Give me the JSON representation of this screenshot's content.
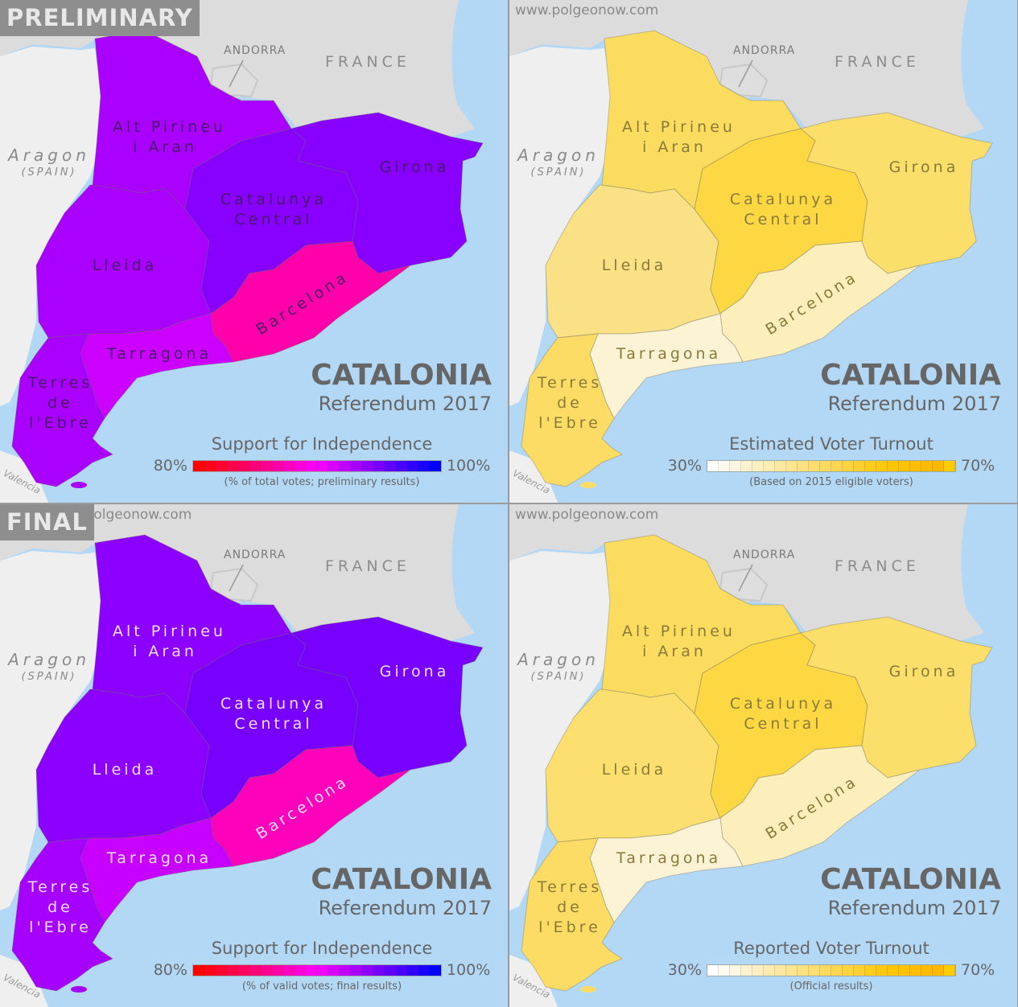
{
  "watermark": "www.polgeonow.com",
  "labels": {
    "france": "FRANCE",
    "andorra": "ANDORRA",
    "aragon": "Aragon",
    "spain": "(SPAIN)",
    "valencia": "Valencia",
    "title": "CATALONIA",
    "subtitle": "Referendum 2017"
  },
  "regions": {
    "alt_pirineu": [
      "Alt Pirineu",
      "i Aran"
    ],
    "catalunya_central": [
      "Catalunya",
      "Central"
    ],
    "girona": "Girona",
    "lleida": "Lleida",
    "barcelona": "Barcelona",
    "tarragona": "Tarragona",
    "terres_ebre": [
      "Terres",
      "de",
      "l'Ebre"
    ]
  },
  "panels": [
    {
      "badge": "PRELIMINARY",
      "legend_title": "Support for Independence",
      "legend_low": "80%",
      "legend_high": "100%",
      "legend_sub": "(% of total votes; preliminary results)",
      "colors": {
        "alt_pirineu": "#aa00ff",
        "lleida": "#aa00ff",
        "catalunya_central": "#8800ff",
        "girona": "#8800ff",
        "barcelona": "#ff00aa",
        "tarragona": "#cc00ff",
        "terres_ebre": "#aa00ff"
      }
    },
    {
      "badge": "",
      "legend_title": "Estimated Voter Turnout",
      "legend_low": "30%",
      "legend_high": "70%",
      "legend_sub": "(Based on 2015 eligible voters)",
      "colors": {
        "alt_pirineu": "#fcdc5f",
        "lleida": "#fbe185",
        "catalunya_central": "#fdd843",
        "girona": "#fcde6a",
        "barcelona": "#fcefbc",
        "tarragona": "#fcf3d4",
        "terres_ebre": "#fcdc64"
      }
    },
    {
      "badge": "FINAL",
      "legend_title": "Support for Independence",
      "legend_low": "80%",
      "legend_high": "100%",
      "legend_sub": "(% of valid votes; final results)",
      "colors": {
        "alt_pirineu": "#8c00ff",
        "lleida": "#8c00ff",
        "catalunya_central": "#7700ff",
        "girona": "#7700ff",
        "barcelona": "#ff00bb",
        "tarragona": "#c800ff",
        "terres_ebre": "#a600ff"
      }
    },
    {
      "badge": "",
      "legend_title": "Reported Voter Turnout",
      "legend_low": "30%",
      "legend_high": "70%",
      "legend_sub": "(Official results)",
      "colors": {
        "alt_pirineu": "#fcdc5f",
        "lleida": "#fcdf6e",
        "catalunya_central": "#fdd843",
        "girona": "#fcde6a",
        "barcelona": "#fcefbc",
        "tarragona": "#fcf3d4",
        "terres_ebre": "#fcdc64"
      }
    }
  ],
  "chart_data": {
    "type": "choropleth",
    "title": "CATALONIA Referendum 2017",
    "regions": [
      "Alt Pirineu i Aran",
      "Lleida",
      "Catalunya Central",
      "Girona",
      "Barcelona",
      "Tarragona",
      "Terres de l'Ebre"
    ],
    "maps": [
      {
        "name": "Preliminary - Support for Independence",
        "scale": [
          80,
          100
        ],
        "unit": "% of total votes; preliminary results"
      },
      {
        "name": "Estimated Voter Turnout",
        "scale": [
          30,
          70
        ],
        "unit": "Based on 2015 eligible voters"
      },
      {
        "name": "Final - Support for Independence",
        "scale": [
          80,
          100
        ],
        "unit": "% of valid votes; final results"
      },
      {
        "name": "Reported Voter Turnout",
        "scale": [
          30,
          70
        ],
        "unit": "Official results"
      }
    ],
    "independence_scale_colors": [
      "#ff0000",
      "#ff0018",
      "#ff0030",
      "#ff0048",
      "#ff0060",
      "#ff0078",
      "#ff0090",
      "#ff00a8",
      "#ff00c0",
      "#ff00d8",
      "#ff00f0",
      "#f000ff",
      "#d800ff",
      "#c000ff",
      "#a800ff",
      "#9000ff",
      "#7800ff",
      "#6000ff",
      "#4800ff",
      "#3000ff",
      "#1800ff",
      "#0000ff"
    ],
    "turnout_scale_colors": [
      "#ffffff",
      "#fefaf0",
      "#fdf6e0",
      "#fdf2d0",
      "#fdefc0",
      "#fdebb0",
      "#fce8a0",
      "#fce490",
      "#fce180",
      "#fcdd70",
      "#fcda60",
      "#fcd650",
      "#fdd340",
      "#fdcf30",
      "#fdcc20",
      "#fec810",
      "#fec500",
      "#ffc200",
      "#ffbf00",
      "#ffbb00",
      "#ffb800",
      "#ffcc00"
    ]
  }
}
